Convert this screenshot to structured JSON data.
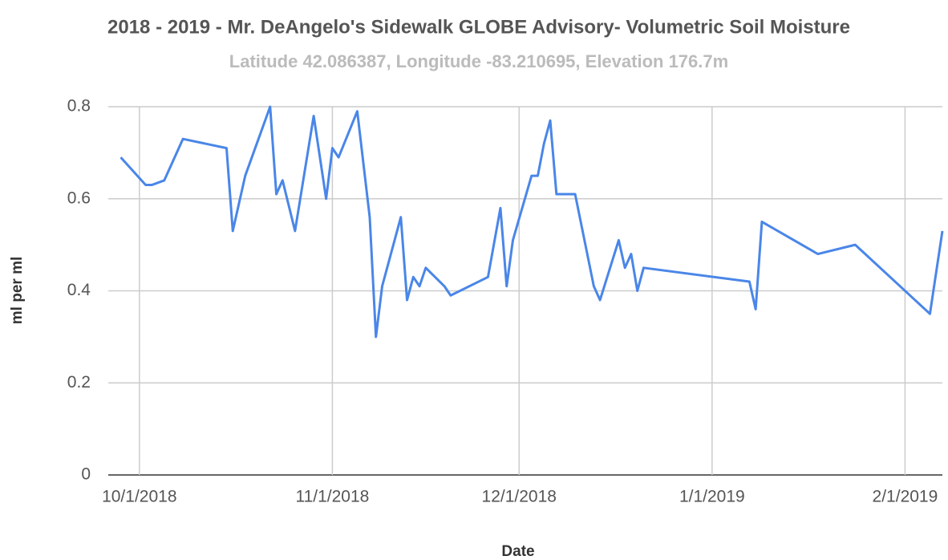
{
  "chart_data": {
    "type": "line",
    "title": "2018 - 2019 - Mr. DeAngelo's Sidewalk GLOBE Advisory- Volumetric Soil Moisture",
    "subtitle": "Latitude 42.086387, Longitude -83.210695, Elevation 176.7m",
    "xlabel": "Date",
    "ylabel": "ml per ml",
    "x": [
      "2018-09-28",
      "2018-10-02",
      "2018-10-03",
      "2018-10-05",
      "2018-10-08",
      "2018-10-15",
      "2018-10-16",
      "2018-10-18",
      "2018-10-22",
      "2018-10-23",
      "2018-10-24",
      "2018-10-26",
      "2018-10-29",
      "2018-10-31",
      "2018-11-01",
      "2018-11-02",
      "2018-11-05",
      "2018-11-07",
      "2018-11-08",
      "2018-11-09",
      "2018-11-12",
      "2018-11-13",
      "2018-11-14",
      "2018-11-15",
      "2018-11-16",
      "2018-11-19",
      "2018-11-20",
      "2018-11-26",
      "2018-11-28",
      "2018-11-29",
      "2018-11-30",
      "2018-12-03",
      "2018-12-04",
      "2018-12-05",
      "2018-12-06",
      "2018-12-07",
      "2018-12-10",
      "2018-12-13",
      "2018-12-14",
      "2018-12-17",
      "2018-12-18",
      "2018-12-19",
      "2018-12-20",
      "2018-12-21",
      "2019-01-07",
      "2019-01-08",
      "2019-01-09",
      "2019-01-18",
      "2019-01-24",
      "2019-02-05",
      "2019-02-07"
    ],
    "series": [
      {
        "name": "ml per ml",
        "color": "#4a86e8",
        "values": [
          0.69,
          0.63,
          0.63,
          0.64,
          0.73,
          0.71,
          0.53,
          0.65,
          0.8,
          0.61,
          0.64,
          0.53,
          0.78,
          0.6,
          0.71,
          0.69,
          0.79,
          0.56,
          0.3,
          0.41,
          0.56,
          0.38,
          0.43,
          0.41,
          0.45,
          0.41,
          0.39,
          0.43,
          0.58,
          0.41,
          0.51,
          0.65,
          0.65,
          0.72,
          0.77,
          0.61,
          0.61,
          0.41,
          0.38,
          0.51,
          0.45,
          0.48,
          0.4,
          0.45,
          0.42,
          0.36,
          0.55,
          0.48,
          0.5,
          0.35,
          0.53
        ]
      }
    ],
    "xlim": [
      "2018-09-26",
      "2019-02-07"
    ],
    "xticks": [
      {
        "value": "2018-10-01",
        "label": "10/1/2018"
      },
      {
        "value": "2018-11-01",
        "label": "11/1/2018"
      },
      {
        "value": "2018-12-01",
        "label": "12/1/2018"
      },
      {
        "value": "2019-01-01",
        "label": "1/1/2019"
      },
      {
        "value": "2019-02-01",
        "label": "2/1/2019"
      }
    ],
    "ylim": [
      0,
      0.8
    ],
    "yticks": [
      0,
      0.2,
      0.4,
      0.6,
      0.8
    ],
    "grid": true
  }
}
